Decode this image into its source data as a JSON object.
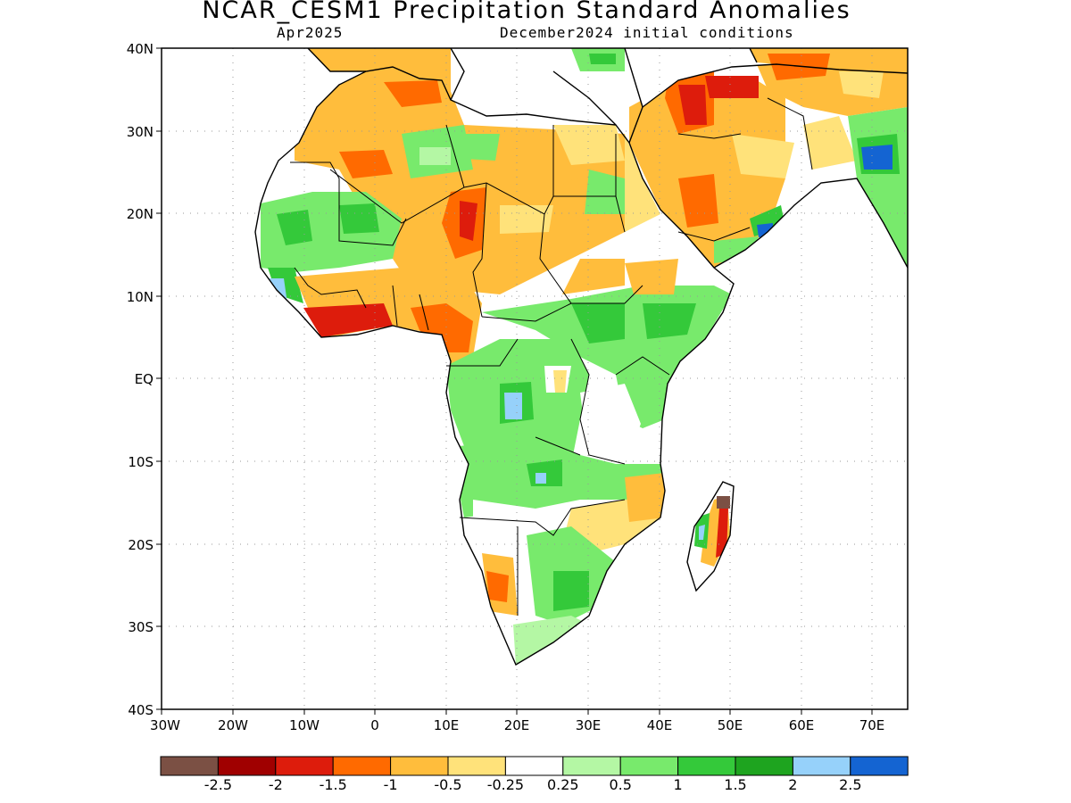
{
  "title": "NCAR_CESM1 Precipitation Standard Anomalies",
  "subtitle_left": "Apr2025",
  "subtitle_right": "December2024 initial conditions",
  "lat_labels": [
    "40N",
    "30N",
    "20N",
    "10N",
    "EQ",
    "10S",
    "20S",
    "30S",
    "40S"
  ],
  "lon_labels": [
    "30W",
    "20W",
    "10W",
    "0",
    "10E",
    "20E",
    "30E",
    "40E",
    "50E",
    "60E",
    "70E"
  ],
  "legend": {
    "colors": [
      "#7b5044",
      "#a00000",
      "#dd1c0c",
      "#ff6a00",
      "#ffbd3c",
      "#ffe27a",
      "#ffffff",
      "#b4f7a4",
      "#78ea6c",
      "#34c93a",
      "#1ea41f",
      "#96d1fa",
      "#1464d2"
    ],
    "labels": [
      "-2.5",
      "-2",
      "-1.5",
      "-1",
      "-0.5",
      "-0.25",
      "0.25",
      "0.5",
      "1",
      "1.5",
      "2",
      "2.5"
    ]
  },
  "extent": {
    "lon": [
      -30,
      75
    ],
    "lat": [
      -40,
      40
    ]
  }
}
